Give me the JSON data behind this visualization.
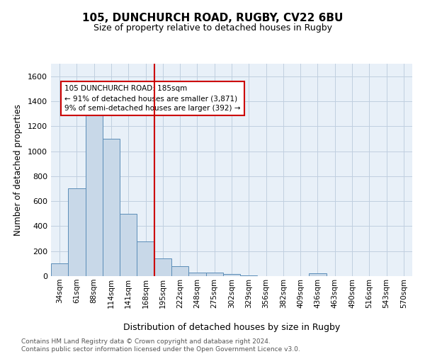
{
  "title1": "105, DUNCHURCH ROAD, RUGBY, CV22 6BU",
  "title2": "Size of property relative to detached houses in Rugby",
  "xlabel": "Distribution of detached houses by size in Rugby",
  "ylabel": "Number of detached properties",
  "bar_labels": [
    "34sqm",
    "61sqm",
    "88sqm",
    "114sqm",
    "141sqm",
    "168sqm",
    "195sqm",
    "222sqm",
    "248sqm",
    "275sqm",
    "302sqm",
    "329sqm",
    "356sqm",
    "382sqm",
    "409sqm",
    "436sqm",
    "463sqm",
    "490sqm",
    "516sqm",
    "543sqm",
    "570sqm"
  ],
  "bar_values": [
    100,
    700,
    1350,
    1100,
    500,
    280,
    140,
    80,
    30,
    30,
    15,
    5,
    2,
    2,
    2,
    20,
    2,
    0,
    0,
    0,
    0
  ],
  "bar_color": "#c8d8e8",
  "bar_edge_color": "#5b8db8",
  "vline_color": "#cc0000",
  "annotation_text": "105 DUNCHURCH ROAD: 185sqm\n← 91% of detached houses are smaller (3,871)\n9% of semi-detached houses are larger (392) →",
  "annotation_box_color": "#ffffff",
  "annotation_box_edge": "#cc0000",
  "ylim": [
    0,
    1700
  ],
  "yticks": [
    0,
    200,
    400,
    600,
    800,
    1000,
    1200,
    1400,
    1600
  ],
  "footer": "Contains HM Land Registry data © Crown copyright and database right 2024.\nContains public sector information licensed under the Open Government Licence v3.0.",
  "background_color": "#ffffff",
  "axes_background": "#e8f0f8",
  "grid_color": "#c0cfe0"
}
